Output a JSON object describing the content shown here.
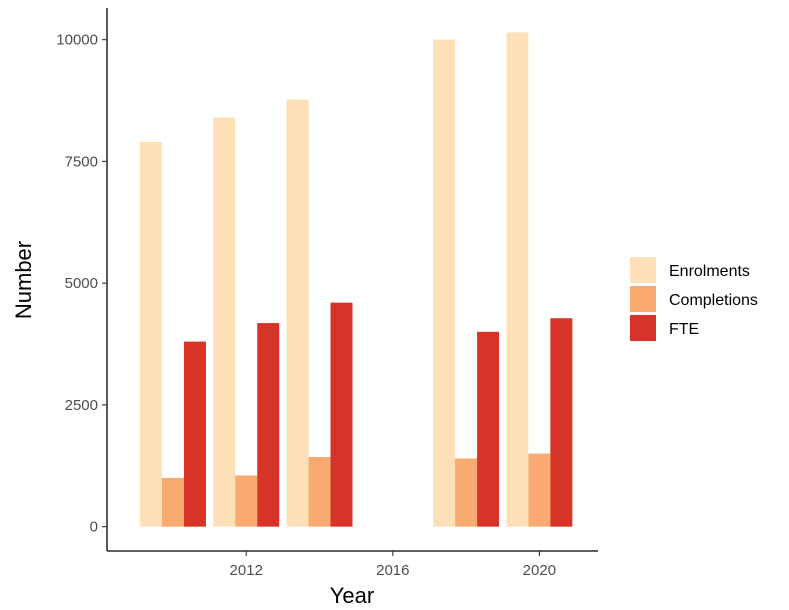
{
  "chart_data": {
    "type": "bar",
    "title": "",
    "xlabel": "Year",
    "ylabel": "Number",
    "x": [
      2010,
      2012,
      2014,
      2018,
      2020
    ],
    "series": [
      {
        "name": "Enrolments",
        "color": "#fde0b8",
        "values": [
          7900,
          8400,
          8770,
          10000,
          10150
        ]
      },
      {
        "name": "Completions",
        "color": "#f9aa70",
        "values": [
          1000,
          1050,
          1430,
          1400,
          1500
        ]
      },
      {
        "name": "FTE",
        "color": "#d73328",
        "values": [
          3800,
          4180,
          4600,
          4000,
          4280
        ]
      }
    ],
    "xticks": [
      2012,
      2016,
      2020
    ],
    "yticks": [
      0,
      2500,
      5000,
      7500,
      10000
    ],
    "xlim": [
      2008.2,
      2021.6
    ],
    "ylim": [
      -500,
      10650
    ],
    "grid": false,
    "legend_position": "right"
  }
}
